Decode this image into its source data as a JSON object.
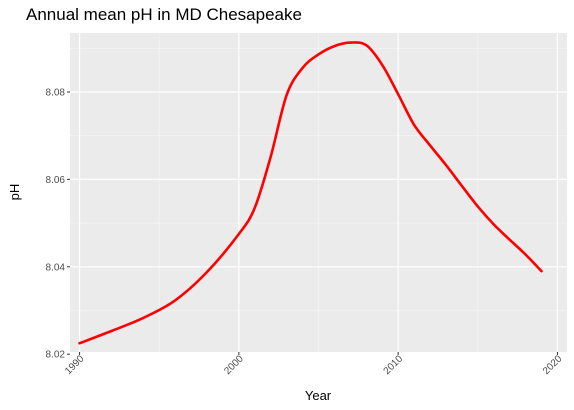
{
  "chart_data": {
    "type": "line",
    "title": "Annual mean pH in MD Chesapeake",
    "xlabel": "Year",
    "ylabel": "pH",
    "xlim": [
      1989.4,
      2020.6
    ],
    "ylim": [
      8.0205,
      8.0935
    ],
    "xticks": [
      1990,
      2000,
      2010,
      2020
    ],
    "yticks": [
      8.02,
      8.04,
      8.06,
      8.08
    ],
    "ytick_labels": [
      "8.02",
      "8.04",
      "8.06",
      "8.08"
    ],
    "grid": true,
    "series": [
      {
        "color": "#ff0000",
        "x": [
          1990,
          1992,
          1994,
          1996,
          1998,
          2000,
          2001,
          2002,
          2003,
          2004,
          2005,
          2006,
          2007,
          2008,
          2009,
          2010,
          2011,
          2012,
          2013,
          2014,
          2015,
          2016,
          2017,
          2018,
          2019
        ],
        "y": [
          8.0225,
          8.0253,
          8.0283,
          8.0323,
          8.0388,
          8.0475,
          8.0535,
          8.0652,
          8.0793,
          8.0855,
          8.0886,
          8.0905,
          8.0913,
          8.0907,
          8.0862,
          8.0795,
          8.0725,
          8.0678,
          8.0633,
          8.0585,
          8.0538,
          8.0497,
          8.0462,
          8.0428,
          8.039
        ]
      }
    ]
  }
}
